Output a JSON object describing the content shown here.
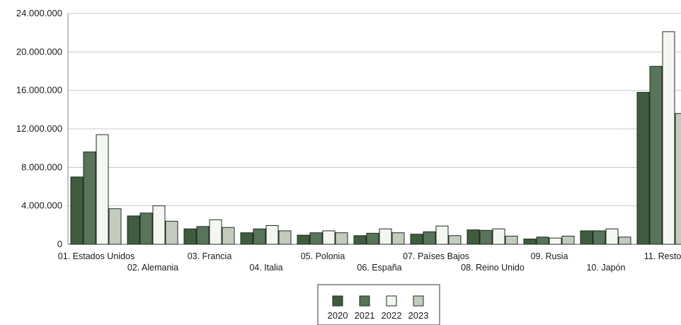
{
  "chart_data": {
    "type": "bar",
    "title": "",
    "xlabel": "",
    "ylabel": "",
    "ylim": [
      0,
      24000000
    ],
    "yticks": [
      0,
      4000000,
      8000000,
      12000000,
      16000000,
      20000000,
      24000000
    ],
    "ytick_labels": [
      "0",
      "4.000.000",
      "8.000.000",
      "12.000.000",
      "16.000.000",
      "20.000.000",
      "24.000.000"
    ],
    "grid": true,
    "legend_position": "bottom-center",
    "categories": [
      "01. Estados Unidos",
      "02. Alemania",
      "03. Francia",
      "04. Italia",
      "05. Polonia",
      "06. España",
      "07. Países Bajos",
      "08. Reino Unido",
      "09. Rusia",
      "10. Japón",
      "11. Resto"
    ],
    "series": [
      {
        "name": "2020",
        "color": "#3f5c3f",
        "values": [
          7000000,
          2950000,
          1600000,
          1200000,
          950000,
          900000,
          1050000,
          1500000,
          550000,
          1400000,
          15800000
        ]
      },
      {
        "name": "2021",
        "color": "#58745a",
        "values": [
          9600000,
          3250000,
          1850000,
          1600000,
          1200000,
          1150000,
          1300000,
          1450000,
          750000,
          1400000,
          18500000
        ]
      },
      {
        "name": "2022",
        "color": "#f4f6f1",
        "values": [
          11400000,
          4000000,
          2550000,
          1950000,
          1400000,
          1600000,
          1900000,
          1600000,
          650000,
          1600000,
          22100000
        ]
      },
      {
        "name": "2023",
        "color": "#c3cbbf",
        "values": [
          3700000,
          2400000,
          1750000,
          1400000,
          1200000,
          1200000,
          900000,
          850000,
          850000,
          750000,
          13600000
        ]
      }
    ]
  }
}
